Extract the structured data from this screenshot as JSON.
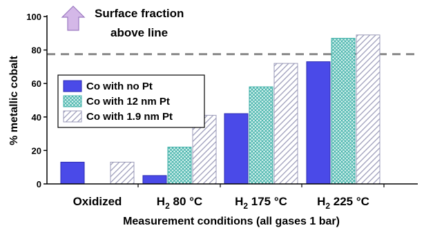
{
  "chart_data": {
    "type": "bar",
    "categories": [
      {
        "main": "Oxidized",
        "sub": "",
        "rest": ""
      },
      {
        "main": "H",
        "sub": "2",
        "rest": " 80 °C"
      },
      {
        "main": "H",
        "sub": "2",
        "rest": " 175 °C"
      },
      {
        "main": "H",
        "sub": "2",
        "rest": " 225 °C"
      }
    ],
    "series": [
      {
        "name": "Co with no Pt",
        "values": [
          13,
          5,
          42,
          73
        ],
        "color": "#4a4ae8",
        "pattern": "solid"
      },
      {
        "name": "Co with 12 nm Pt",
        "values": [
          null,
          22,
          58,
          87
        ],
        "color": "#3fb0a8",
        "pattern": "crosshatch"
      },
      {
        "name": "Co with 1.9 nm Pt",
        "values": [
          13,
          41,
          72,
          89
        ],
        "color": "#9a9ab8",
        "pattern": "diagonal"
      }
    ],
    "ylabel": "% metallic cobalt",
    "xlabel": "Measurement conditions (all gases 1 bar)",
    "ylim": [
      0,
      100
    ],
    "yticks": [
      0,
      20,
      40,
      60,
      80,
      100
    ],
    "reference_line": {
      "value": 77.5,
      "style": "dashed",
      "color": "#888888"
    },
    "annotation": {
      "lines": [
        "Surface fraction",
        "above line"
      ],
      "icon": "up-arrow-icon",
      "icon_color": "#c8a8e0"
    },
    "legend_placement": "left"
  }
}
